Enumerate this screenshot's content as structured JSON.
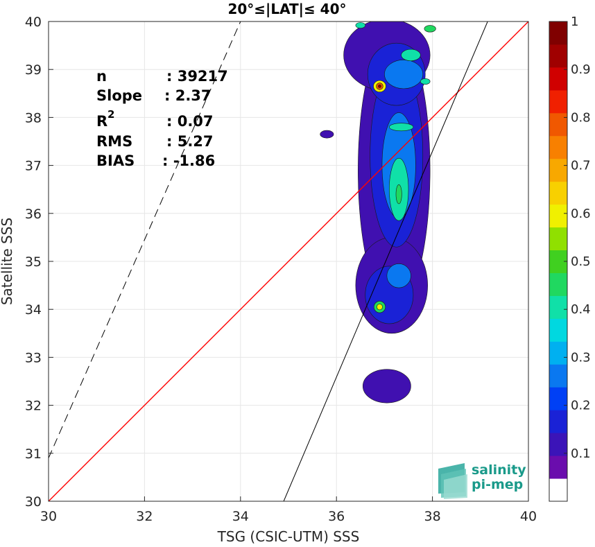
{
  "chart_data": {
    "type": "heatmap",
    "subtype": "density-contour scatter comparison",
    "title": "20°≤|LAT|≤ 40°",
    "xlabel": "TSG (CSIC-UTM) SSS",
    "ylabel": "Satellite SSS",
    "xlim": [
      30,
      40
    ],
    "ylim": [
      30,
      40
    ],
    "xticks": [
      "30",
      "32",
      "34",
      "36",
      "38",
      "40"
    ],
    "yticks": [
      "30",
      "31",
      "32",
      "33",
      "34",
      "35",
      "36",
      "37",
      "38",
      "39",
      "40"
    ],
    "grid": true,
    "stats": [
      {
        "label": "n",
        "value": ": 39217"
      },
      {
        "label": "Slope",
        "value": ": 2.37"
      },
      {
        "label": "R",
        "sup": "2",
        "value": ": 0.07"
      },
      {
        "label": "RMS",
        "value": ": 5.27"
      },
      {
        "label": "BIAS",
        "value": ": -1.86"
      }
    ],
    "lines": [
      {
        "name": "identity",
        "color": "#ff0000",
        "style": "solid",
        "points": [
          [
            30,
            30
          ],
          [
            40,
            40
          ]
        ]
      },
      {
        "name": "fit",
        "color": "#000000",
        "style": "solid",
        "points": [
          [
            34.9,
            30
          ],
          [
            39.15,
            40
          ]
        ]
      },
      {
        "name": "bound",
        "color": "#000000",
        "style": "dashed",
        "points": [
          [
            30,
            30.9
          ],
          [
            34.0,
            40
          ]
        ]
      }
    ],
    "colorbar": {
      "range": [
        0,
        1
      ],
      "ticks": [
        "0.1",
        "0.2",
        "0.3",
        "0.4",
        "0.5",
        "0.6",
        "0.7",
        "0.8",
        "0.9",
        "1"
      ],
      "colors": [
        "#ffffff",
        "#6a0dad",
        "#3b14b8",
        "#1a22d6",
        "#0040f5",
        "#0a78f0",
        "#00b0f0",
        "#00d8e0",
        "#10e0a8",
        "#20d860",
        "#40d020",
        "#90e000",
        "#f0f000",
        "#f8d000",
        "#f8a800",
        "#f88000",
        "#f05800",
        "#f02000",
        "#d00000",
        "#a00000",
        "#800000"
      ]
    },
    "density_blobs": [
      {
        "level": 0.1,
        "color": "#4010b0",
        "cx": 37.2,
        "cy": 36.9,
        "rx": 0.75,
        "ry": 2.9
      },
      {
        "level": 0.1,
        "color": "#4010b0",
        "cx": 37.05,
        "cy": 39.3,
        "rx": 0.9,
        "ry": 0.75
      },
      {
        "level": 0.1,
        "color": "#4010b0",
        "cx": 37.15,
        "cy": 34.5,
        "rx": 0.75,
        "ry": 1.0
      },
      {
        "level": 0.1,
        "color": "#4010b0",
        "cx": 37.05,
        "cy": 32.4,
        "rx": 0.5,
        "ry": 0.35
      },
      {
        "level": 0.1,
        "color": "#4010b0",
        "cx": 35.8,
        "cy": 37.65,
        "rx": 0.14,
        "ry": 0.08
      },
      {
        "level": 0.2,
        "color": "#1a22d6",
        "cx": 37.25,
        "cy": 37.2,
        "rx": 0.55,
        "ry": 1.9
      },
      {
        "level": 0.2,
        "color": "#1a22d6",
        "cx": 37.25,
        "cy": 38.9,
        "rx": 0.6,
        "ry": 0.65
      },
      {
        "level": 0.2,
        "color": "#1a22d6",
        "cx": 37.1,
        "cy": 34.3,
        "rx": 0.5,
        "ry": 0.6
      },
      {
        "level": 0.3,
        "color": "#0a78f0",
        "cx": 37.3,
        "cy": 37.0,
        "rx": 0.35,
        "ry": 1.1
      },
      {
        "level": 0.3,
        "color": "#0a78f0",
        "cx": 37.4,
        "cy": 38.9,
        "rx": 0.4,
        "ry": 0.3
      },
      {
        "level": 0.3,
        "color": "#0a78f0",
        "cx": 37.3,
        "cy": 34.7,
        "rx": 0.25,
        "ry": 0.25
      },
      {
        "level": 0.4,
        "color": "#10e0a8",
        "cx": 37.3,
        "cy": 36.5,
        "rx": 0.2,
        "ry": 0.65
      },
      {
        "level": 0.4,
        "color": "#10e0a8",
        "cx": 37.55,
        "cy": 39.3,
        "rx": 0.2,
        "ry": 0.12
      },
      {
        "level": 0.4,
        "color": "#10e0a8",
        "cx": 37.35,
        "cy": 37.8,
        "rx": 0.25,
        "ry": 0.08
      },
      {
        "level": 0.4,
        "color": "#10e0a8",
        "cx": 37.85,
        "cy": 38.75,
        "rx": 0.1,
        "ry": 0.06
      },
      {
        "level": 0.5,
        "color": "#20d860",
        "cx": 37.3,
        "cy": 36.4,
        "rx": 0.06,
        "ry": 0.2
      },
      {
        "level": 0.5,
        "color": "#20d860",
        "cx": 37.95,
        "cy": 39.85,
        "rx": 0.12,
        "ry": 0.07
      },
      {
        "level": 0.5,
        "color": "#20d860",
        "cx": 36.9,
        "cy": 34.05,
        "rx": 0.12,
        "ry": 0.12
      },
      {
        "level": 0.6,
        "color": "#f0f000",
        "cx": 36.9,
        "cy": 34.05,
        "rx": 0.06,
        "ry": 0.06
      },
      {
        "level": 0.6,
        "color": "#f0f000",
        "cx": 36.9,
        "cy": 38.65,
        "rx": 0.13,
        "ry": 0.12
      },
      {
        "level": 0.8,
        "color": "#f05800",
        "cx": 36.9,
        "cy": 38.65,
        "rx": 0.07,
        "ry": 0.07
      },
      {
        "level": 1.0,
        "color": "#800000",
        "cx": 36.9,
        "cy": 38.65,
        "rx": 0.03,
        "ry": 0.03
      },
      {
        "level": 0.4,
        "color": "#10e0a8",
        "cx": 36.5,
        "cy": 39.92,
        "rx": 0.1,
        "ry": 0.06
      }
    ]
  },
  "logo": {
    "line1": "salinity",
    "line2": "pi-mep"
  }
}
